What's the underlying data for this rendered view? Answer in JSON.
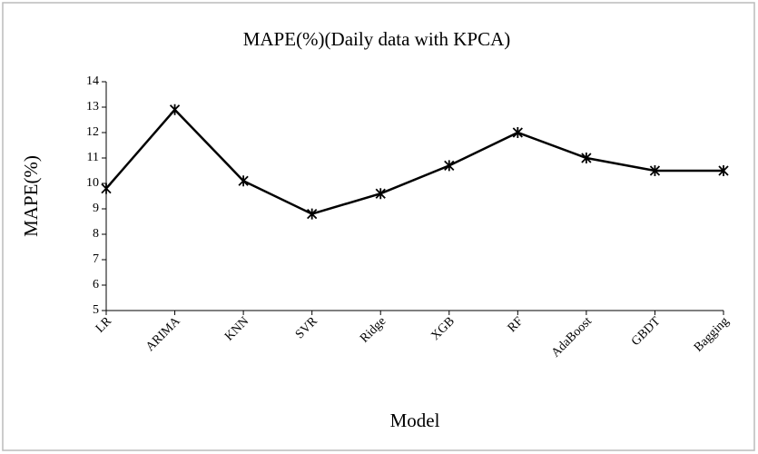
{
  "chart_data": {
    "type": "line",
    "title": "MAPE(%)(Daily data with KPCA)",
    "x_label": "Model",
    "y_label": "MAPE(%)",
    "categories": [
      "LR",
      "ARIMA",
      "KNN",
      "SVR",
      "Ridge",
      "XGB",
      "RF",
      "AdaBoost",
      "GBDT",
      "Bagging"
    ],
    "series": [
      {
        "name": "MAPE(%)",
        "color": "#000000",
        "values": [
          9.8,
          12.9,
          10.1,
          8.8,
          9.6,
          10.7,
          12.0,
          11.0,
          10.5,
          10.5
        ]
      }
    ],
    "ylim": [
      5,
      14
    ],
    "yticks": [
      5,
      6,
      7,
      8,
      9,
      10,
      11,
      12,
      13,
      14
    ],
    "grid": false
  }
}
